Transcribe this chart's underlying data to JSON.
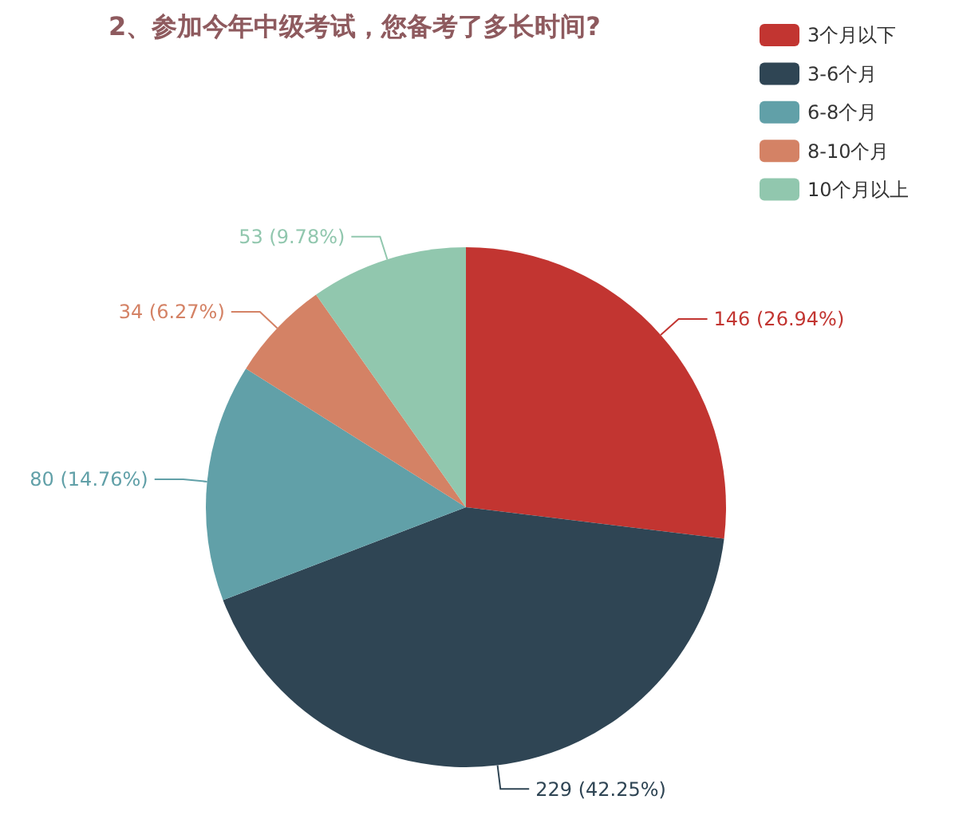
{
  "chart_data": {
    "type": "pie",
    "title": "2、参加今年中级考试，您备考了多长时间?",
    "categories": [
      "3个月以下",
      "3-6个月",
      "6-8个月",
      "8-10个月",
      "10个月以上"
    ],
    "values": [
      146,
      229,
      80,
      34,
      53
    ],
    "colors": [
      "#c23531",
      "#2f4554",
      "#61a0a8",
      "#d48265",
      "#91c7ae"
    ],
    "value_labels": [
      "146 (26.94%)",
      "229 (42.25%)",
      "80 (14.76%)",
      "34 (6.27%)",
      "53 (9.78%)"
    ],
    "legend": "top right"
  }
}
